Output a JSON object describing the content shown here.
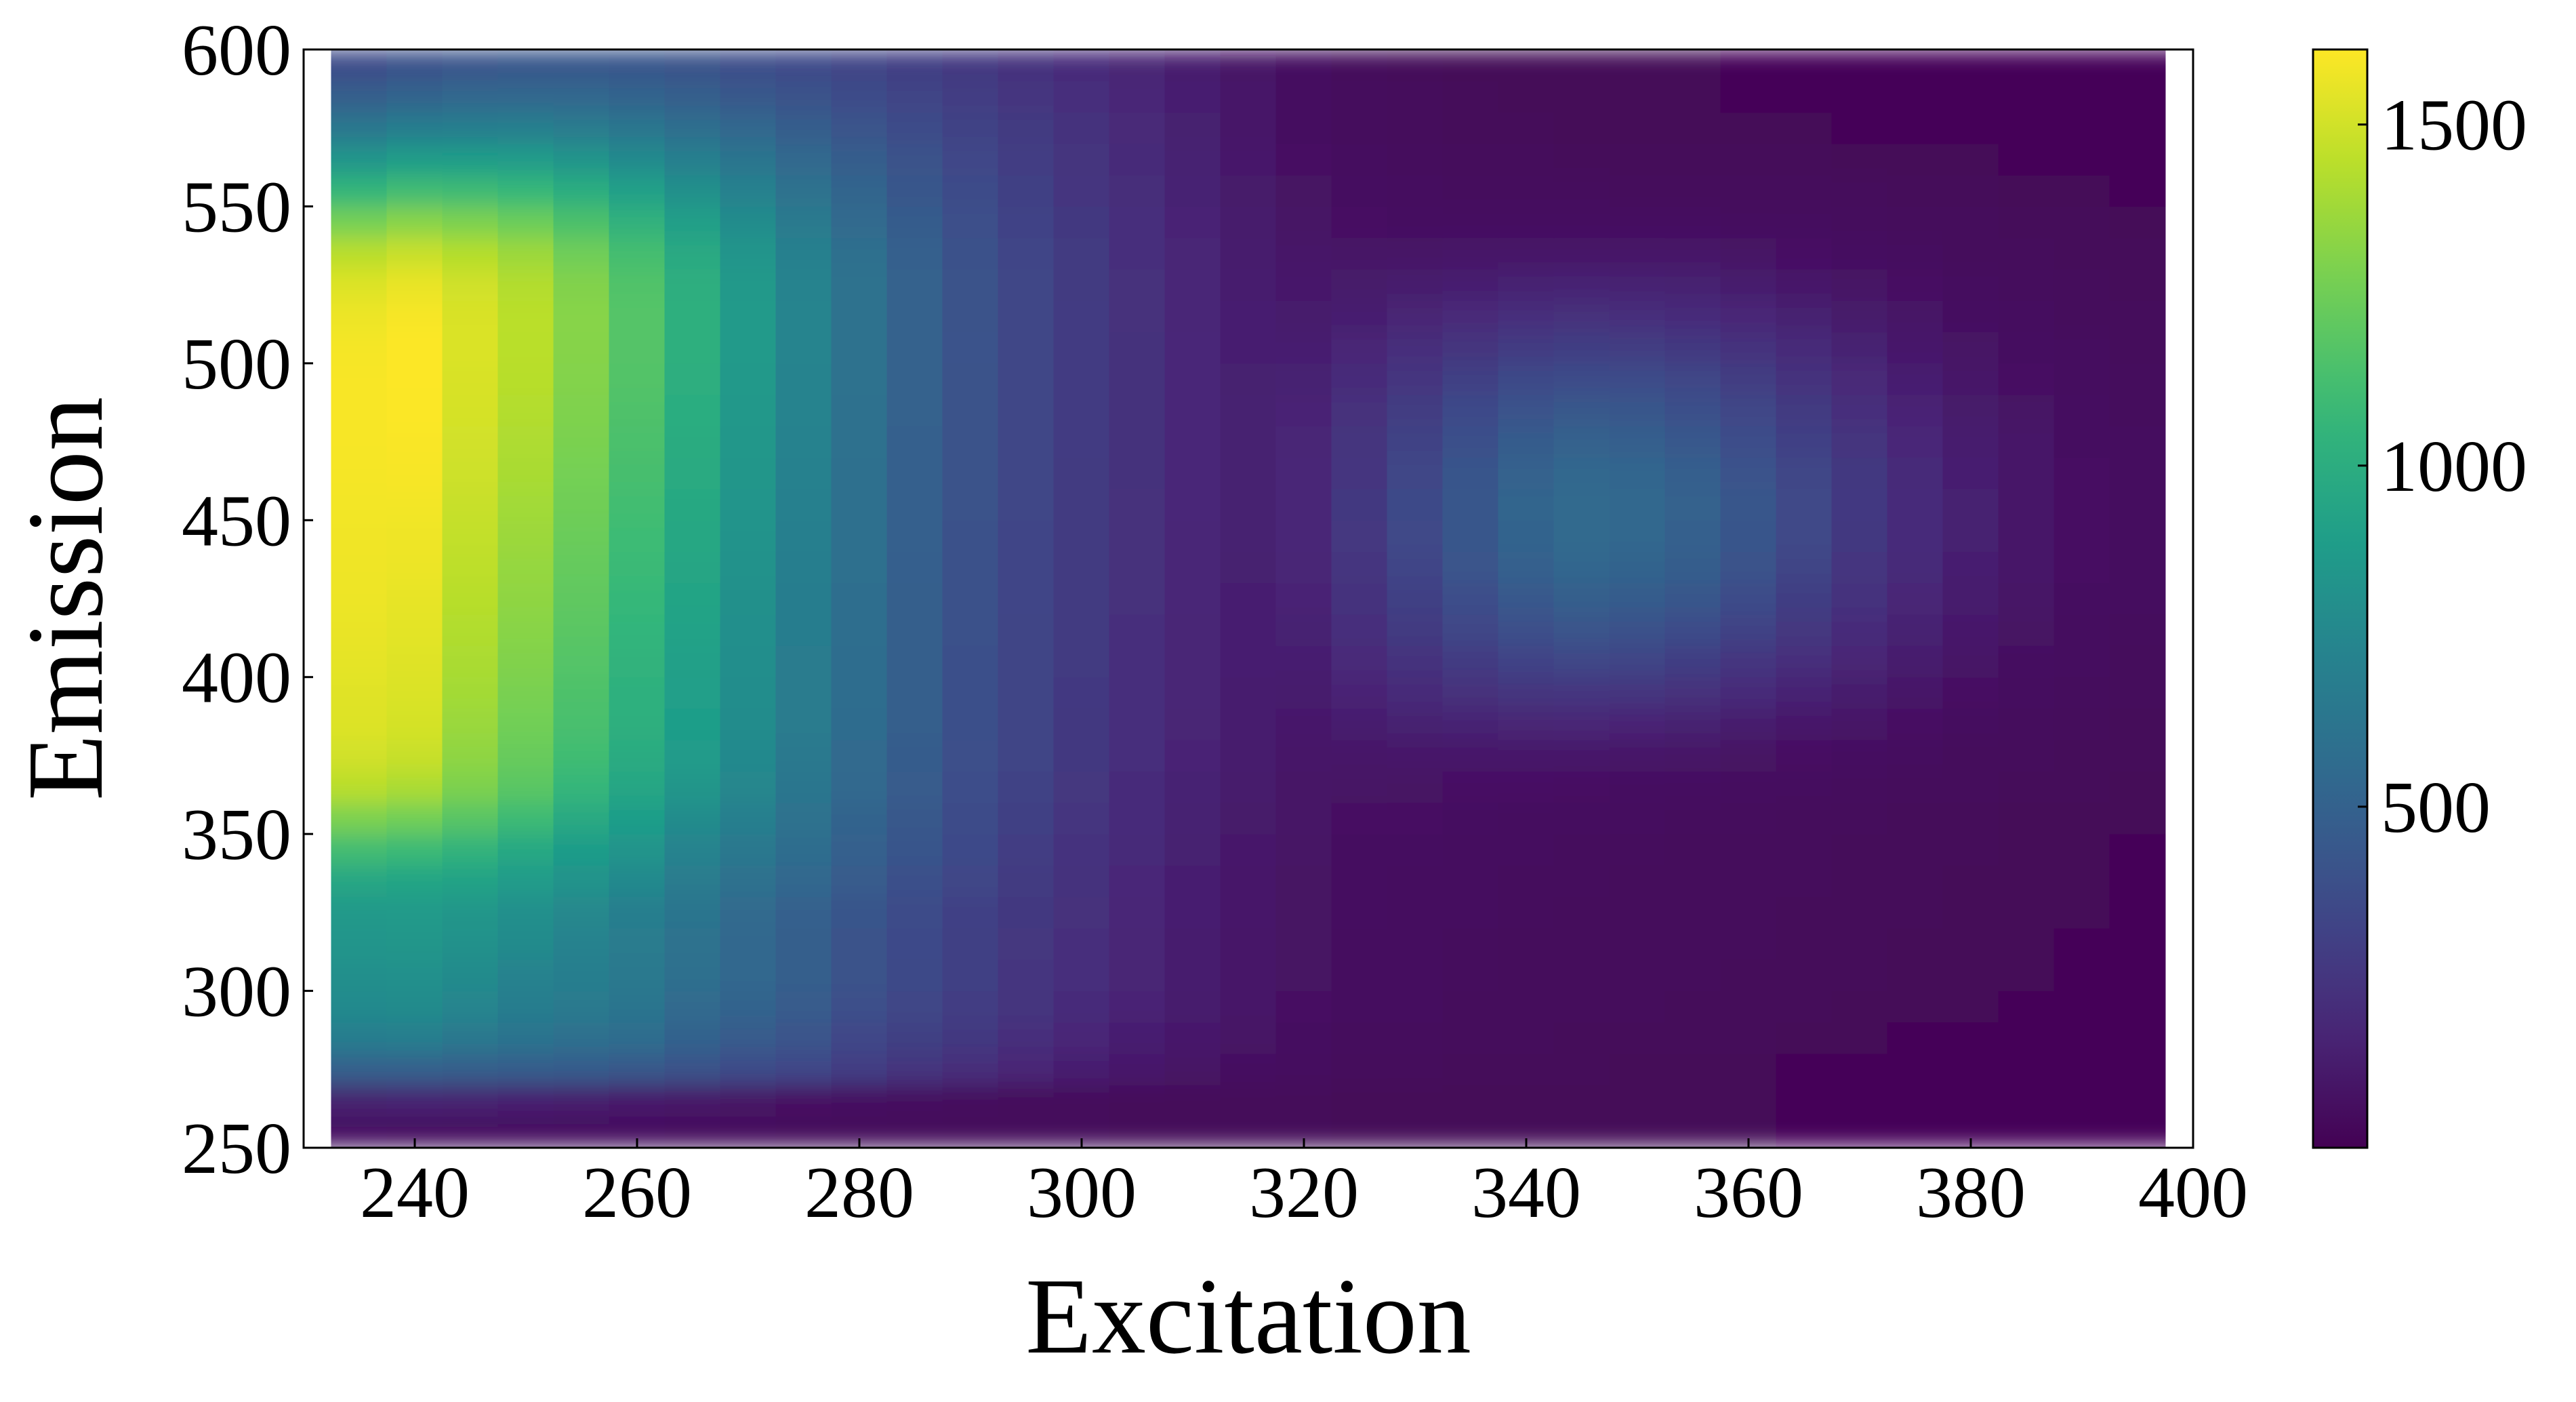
{
  "chart_data": {
    "type": "heatmap",
    "title": "",
    "xlabel": "Excitation",
    "ylabel": "Emission",
    "xlim": [
      230,
      400
    ],
    "ylim": [
      250,
      600
    ],
    "xticks": [
      240,
      260,
      280,
      300,
      320,
      340,
      360,
      380,
      400
    ],
    "yticks": [
      250,
      300,
      350,
      400,
      450,
      500,
      550,
      600
    ],
    "colormap": "viridis",
    "colorbar": {
      "range": [
        0,
        1610
      ],
      "ticks": [
        500,
        1000,
        1500
      ]
    },
    "x": [
      235,
      240,
      245,
      250,
      255,
      260,
      265,
      270,
      275,
      280,
      285,
      290,
      295,
      300,
      305,
      310,
      315,
      320,
      325,
      330,
      335,
      340,
      345,
      350,
      355,
      360,
      365,
      370,
      375,
      380,
      385,
      390,
      395
    ],
    "y": [
      255,
      265,
      275,
      285,
      295,
      305,
      315,
      325,
      335,
      345,
      355,
      365,
      375,
      385,
      395,
      405,
      415,
      425,
      435,
      445,
      455,
      465,
      475,
      485,
      495,
      505,
      515,
      525,
      535,
      545,
      555,
      565,
      575,
      585,
      595
    ],
    "z": [
      [
        60,
        56,
        56,
        56,
        51,
        49,
        47,
        45,
        42,
        40,
        38,
        36,
        34,
        33,
        31,
        30,
        29,
        28,
        27,
        26,
        26,
        26,
        26,
        26,
        26,
        26,
        25,
        25,
        25,
        25,
        25,
        25,
        25
      ],
      [
        141,
        150,
        142,
        133,
        123,
        107,
        95,
        84,
        71,
        61,
        54,
        46,
        40,
        36,
        32,
        30,
        29,
        28,
        27,
        26,
        26,
        26,
        26,
        26,
        26,
        26,
        25,
        25,
        25,
        25,
        25,
        25,
        25
      ],
      [
        492,
        490,
        482,
        473,
        464,
        446,
        407,
        370,
        343,
        293,
        244,
        203,
        168,
        136,
        108,
        84,
        67,
        52,
        40,
        36,
        31,
        29,
        28,
        27,
        26,
        26,
        25,
        25,
        25,
        25,
        25,
        25,
        25
      ],
      [
        680,
        687,
        650,
        614,
        591,
        570,
        503,
        457,
        417,
        344,
        298,
        261,
        213,
        174,
        139,
        108,
        84,
        64,
        47,
        43,
        37,
        34,
        32,
        30,
        29,
        28,
        27,
        26,
        25,
        25,
        25,
        25,
        25
      ],
      [
        765,
        772,
        732,
        682,
        659,
        622,
        560,
        510,
        458,
        390,
        336,
        291,
        241,
        197,
        157,
        122,
        94,
        72,
        53,
        49,
        42,
        38,
        36,
        34,
        32,
        30,
        28,
        27,
        26,
        26,
        25,
        25,
        25
      ],
      [
        799,
        804,
        772,
        718,
        687,
        651,
        589,
        530,
        477,
        407,
        350,
        303,
        251,
        208,
        165,
        127,
        99,
        76,
        56,
        52,
        44,
        41,
        38,
        36,
        34,
        32,
        30,
        28,
        27,
        26,
        26,
        25,
        25
      ],
      [
        835,
        842,
        810,
        770,
        717,
        664,
        603,
        536,
        482,
        411,
        355,
        306,
        257,
        213,
        169,
        130,
        101,
        77,
        57,
        54,
        46,
        42,
        40,
        38,
        35,
        33,
        31,
        29,
        27,
        26,
        26,
        25,
        25
      ],
      [
        862,
        868,
        846,
        801,
        752,
        686,
        621,
        553,
        486,
        422,
        364,
        313,
        263,
        221,
        174,
        134,
        104,
        79,
        59,
        56,
        48,
        44,
        42,
        40,
        37,
        34,
        32,
        30,
        28,
        27,
        26,
        26,
        25
      ],
      [
        954,
        939,
        925,
        874,
        822,
        762,
        665,
        600,
        531,
        460,
        395,
        340,
        278,
        227,
        180,
        138,
        106,
        81,
        61,
        57,
        50,
        47,
        44,
        41,
        39,
        36,
        33,
        31,
        29,
        27,
        26,
        26,
        25
      ],
      [
        1113,
        1088,
        1037,
        964,
        884,
        833,
        722,
        645,
        571,
        491,
        421,
        359,
        295,
        239,
        190,
        145,
        111,
        84,
        65,
        60,
        53,
        50,
        47,
        44,
        41,
        38,
        35,
        32,
        30,
        28,
        27,
        26,
        25
      ],
      [
        1288,
        1260,
        1184,
        1096,
        975,
        892,
        778,
        696,
        604,
        513,
        441,
        372,
        307,
        248,
        195,
        150,
        115,
        87,
        71,
        68,
        60,
        57,
        54,
        51,
        47,
        43,
        39,
        35,
        32,
        29,
        27,
        26,
        26
      ],
      [
        1440,
        1408,
        1290,
        1190,
        1066,
        953,
        846,
        745,
        633,
        543,
        458,
        383,
        318,
        257,
        202,
        156,
        119,
        90,
        82,
        80,
        75,
        73,
        71,
        67,
        61,
        55,
        49,
        43,
        38,
        33,
        30,
        28,
        27
      ],
      [
        1500,
        1478,
        1336,
        1230,
        1110,
        989,
        874,
        763,
        651,
        556,
        465,
        388,
        324,
        262,
        208,
        161,
        123,
        98,
        100,
        104,
        104,
        106,
        106,
        100,
        91,
        80,
        69,
        59,
        50,
        42,
        36,
        31,
        28
      ],
      [
        1530,
        1508,
        1364,
        1261,
        1132,
        1013,
        895,
        779,
        664,
        566,
        475,
        393,
        327,
        266,
        212,
        165,
        127,
        110,
        128,
        145,
        156,
        166,
        168,
        160,
        146,
        126,
        106,
        87,
        70,
        55,
        44,
        36,
        31
      ],
      [
        1538,
        1523,
        1387,
        1279,
        1152,
        1020,
        900,
        785,
        669,
        571,
        477,
        394,
        329,
        269,
        214,
        167,
        130,
        124,
        158,
        191,
        219,
        243,
        252,
        241,
        220,
        188,
        156,
        124,
        96,
        72,
        55,
        43,
        35
      ],
      [
        1550,
        1535,
        1403,
        1300,
        1171,
        1040,
        909,
        791,
        673,
        573,
        478,
        395,
        330,
        271,
        216,
        169,
        133,
        137,
        186,
        236,
        281,
        321,
        337,
        324,
        297,
        254,
        208,
        163,
        123,
        90,
        66,
        50,
        40
      ],
      [
        1560,
        1546,
        1420,
        1318,
        1190,
        1056,
        921,
        800,
        678,
        577,
        480,
        397,
        331,
        272,
        218,
        171,
        136,
        149,
        212,
        276,
        336,
        391,
        415,
        400,
        367,
        314,
        256,
        199,
        149,
        108,
        77,
        57,
        45
      ],
      [
        1570,
        1555,
        1436,
        1335,
        1207,
        1072,
        934,
        808,
        684,
        580,
        482,
        399,
        332,
        274,
        220,
        173,
        139,
        160,
        234,
        310,
        383,
        450,
        480,
        464,
        427,
        365,
        297,
        230,
        171,
        123,
        87,
        63,
        49
      ],
      [
        1575,
        1567,
        1450,
        1351,
        1224,
        1088,
        946,
        816,
        690,
        583,
        484,
        400,
        333,
        275,
        221,
        175,
        141,
        168,
        250,
        334,
        416,
        492,
        527,
        511,
        471,
        403,
        328,
        254,
        188,
        135,
        95,
        68,
        52
      ],
      [
        1580,
        1575,
        1463,
        1368,
        1240,
        1103,
        958,
        825,
        696,
        586,
        486,
        402,
        334,
        276,
        222,
        176,
        143,
        173,
        259,
        347,
        434,
        515,
        553,
        537,
        496,
        424,
        346,
        268,
        199,
        142,
        100,
        71,
        54
      ],
      [
        1585,
        1585,
        1477,
        1384,
        1255,
        1117,
        969,
        834,
        702,
        590,
        489,
        404,
        335,
        277,
        223,
        177,
        144,
        175,
        261,
        350,
        437,
        518,
        556,
        540,
        499,
        427,
        348,
        270,
        200,
        143,
        101,
        72,
        55
      ],
      [
        1590,
        1595,
        1490,
        1400,
        1270,
        1131,
        980,
        842,
        708,
        594,
        492,
        406,
        337,
        278,
        224,
        178,
        144,
        173,
        255,
        341,
        425,
        502,
        538,
        523,
        484,
        414,
        338,
        262,
        194,
        139,
        98,
        70,
        54
      ],
      [
        1595,
        1600,
        1500,
        1413,
        1283,
        1143,
        990,
        850,
        714,
        598,
        495,
        408,
        338,
        279,
        225,
        178,
        144,
        167,
        241,
        320,
        396,
        466,
        498,
        484,
        448,
        383,
        313,
        243,
        180,
        129,
        92,
        66,
        51
      ],
      [
        1598,
        1605,
        1510,
        1425,
        1295,
        1154,
        999,
        857,
        719,
        602,
        498,
        410,
        339,
        280,
        225,
        178,
        143,
        158,
        220,
        288,
        353,
        413,
        440,
        428,
        396,
        339,
        277,
        215,
        160,
        115,
        82,
        60,
        47
      ],
      [
        1597,
        1608,
        1518,
        1435,
        1305,
        1163,
        1007,
        863,
        723,
        605,
        500,
        411,
        340,
        280,
        225,
        178,
        141,
        147,
        195,
        249,
        301,
        349,
        371,
        361,
        335,
        287,
        235,
        183,
        137,
        99,
        72,
        54,
        43
      ],
      [
        1590,
        1607,
        1523,
        1442,
        1313,
        1170,
        1013,
        867,
        726,
        607,
        501,
        412,
        340,
        280,
        224,
        177,
        138,
        134,
        167,
        206,
        244,
        280,
        296,
        289,
        268,
        231,
        190,
        149,
        112,
        83,
        62,
        48,
        39
      ],
      [
        1570,
        1595,
        1520,
        1443,
        1316,
        1173,
        1015,
        868,
        727,
        607,
        501,
        411,
        339,
        279,
        223,
        175,
        134,
        121,
        139,
        163,
        187,
        211,
        221,
        216,
        202,
        175,
        145,
        115,
        89,
        67,
        52,
        42,
        35
      ],
      [
        1530,
        1560,
        1497,
        1425,
        1302,
        1162,
        1006,
        861,
        722,
        603,
        498,
        409,
        337,
        277,
        221,
        172,
        130,
        108,
        113,
        124,
        136,
        149,
        154,
        151,
        142,
        125,
        106,
        86,
        68,
        53,
        43,
        36,
        31
      ],
      [
        1440,
        1478,
        1429,
        1367,
        1254,
        1122,
        974,
        836,
        703,
        589,
        488,
        402,
        332,
        273,
        217,
        168,
        125,
        95,
        90,
        91,
        94,
        98,
        100,
        98,
        93,
        84,
        73,
        62,
        51,
        42,
        35,
        31,
        28
      ],
      [
        1270,
        1314,
        1286,
        1241,
        1147,
        1033,
        903,
        781,
        662,
        559,
        467,
        387,
        322,
        265,
        211,
        162,
        119,
        84,
        72,
        67,
        64,
        64,
        64,
        63,
        60,
        56,
        51,
        45,
        39,
        34,
        30,
        28,
        26
      ],
      [
        1060,
        1105,
        1095,
        1070,
        1000,
        910,
        806,
        706,
        606,
        517,
        437,
        366,
        307,
        255,
        203,
        155,
        113,
        77,
        60,
        52,
        46,
        44,
        43,
        42,
        41,
        39,
        37,
        34,
        31,
        29,
        27,
        26,
        25
      ],
      [
        840,
        884,
        884,
        876,
        831,
        769,
        693,
        619,
        541,
        469,
        403,
        342,
        290,
        243,
        194,
        148,
        107,
        72,
        52,
        43,
        36,
        33,
        32,
        31,
        30,
        29,
        28,
        27,
        26,
        26,
        25,
        25,
        25
      ],
      [
        640,
        680,
        690,
        693,
        668,
        631,
        580,
        530,
        472,
        418,
        366,
        316,
        271,
        229,
        184,
        141,
        101,
        67,
        47,
        37,
        31,
        28,
        27,
        27,
        26,
        26,
        26,
        25,
        25,
        25,
        25,
        25,
        25
      ],
      [
        480,
        515,
        530,
        540,
        530,
        511,
        480,
        447,
        408,
        369,
        330,
        290,
        252,
        215,
        174,
        134,
        96,
        63,
        43,
        33,
        28,
        26,
        26,
        26,
        26,
        25,
        25,
        25,
        25,
        25,
        25,
        25,
        25
      ],
      [
        370,
        400,
        417,
        430,
        430,
        422,
        404,
        382,
        356,
        328,
        297,
        265,
        234,
        201,
        164,
        127,
        91,
        60,
        40,
        31,
        27,
        26,
        26,
        26,
        26,
        25,
        25,
        25,
        25,
        25,
        25,
        25,
        25
      ]
    ]
  }
}
